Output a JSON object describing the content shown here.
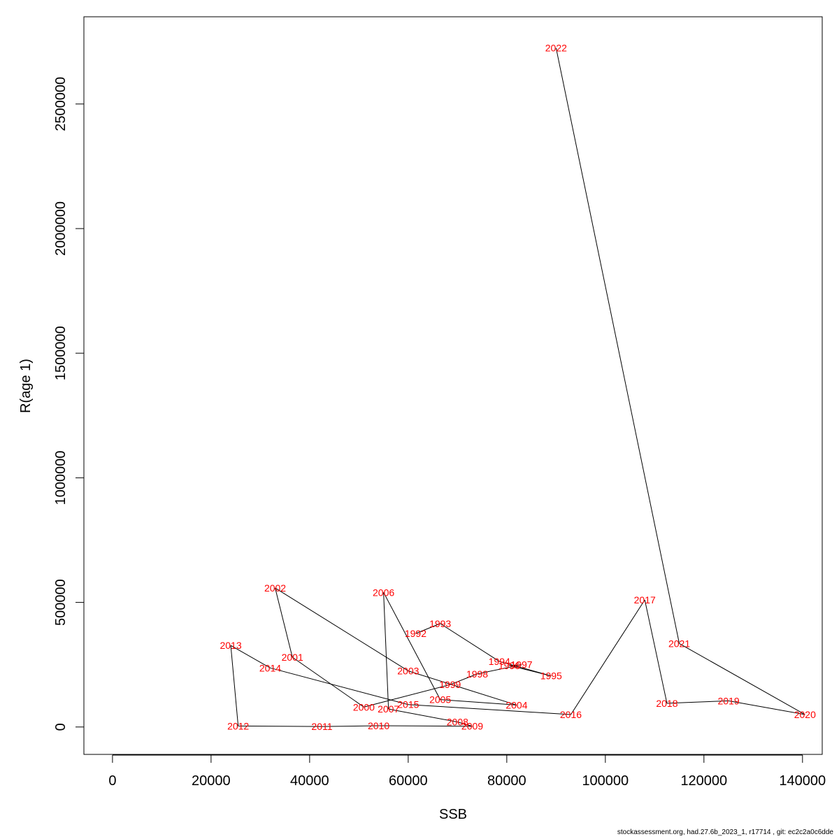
{
  "chart_data": {
    "type": "line",
    "xlabel": "SSB",
    "ylabel": "R(age 1)",
    "xlim": [
      -5800,
      144000
    ],
    "ylim": [
      -110000,
      2850000
    ],
    "x_ticks": [
      0,
      20000,
      40000,
      60000,
      80000,
      100000,
      120000,
      140000
    ],
    "y_ticks": [
      0,
      500000,
      1000000,
      1500000,
      2000000,
      2500000
    ],
    "grid": false,
    "label_color": "#ff0000",
    "line_color": "#000000",
    "points": [
      {
        "year": "1992",
        "x": 61500,
        "y": 375000
      },
      {
        "year": "1993",
        "x": 66500,
        "y": 415000
      },
      {
        "year": "1994",
        "x": 78500,
        "y": 263000
      },
      {
        "year": "1995",
        "x": 89000,
        "y": 205000
      },
      {
        "year": "1996",
        "x": 80500,
        "y": 247000
      },
      {
        "year": "1997",
        "x": 83000,
        "y": 250000
      },
      {
        "year": "1998",
        "x": 74000,
        "y": 213000
      },
      {
        "year": "1999",
        "x": 68500,
        "y": 170000
      },
      {
        "year": "2000",
        "x": 51000,
        "y": 80000
      },
      {
        "year": "2001",
        "x": 36500,
        "y": 280000
      },
      {
        "year": "2002",
        "x": 33000,
        "y": 558000
      },
      {
        "year": "2003",
        "x": 60000,
        "y": 225000
      },
      {
        "year": "2004",
        "x": 82000,
        "y": 88000
      },
      {
        "year": "2005",
        "x": 66500,
        "y": 110000
      },
      {
        "year": "2006",
        "x": 55000,
        "y": 540000
      },
      {
        "year": "2007",
        "x": 56000,
        "y": 72000
      },
      {
        "year": "2008",
        "x": 70000,
        "y": 20000
      },
      {
        "year": "2009",
        "x": 73000,
        "y": 3000
      },
      {
        "year": "2010",
        "x": 54000,
        "y": 5000
      },
      {
        "year": "2011",
        "x": 42500,
        "y": 2000
      },
      {
        "year": "2012",
        "x": 25500,
        "y": 4000
      },
      {
        "year": "2013",
        "x": 24000,
        "y": 327000
      },
      {
        "year": "2014",
        "x": 32000,
        "y": 237000
      },
      {
        "year": "2015",
        "x": 60000,
        "y": 90000
      },
      {
        "year": "2016",
        "x": 93000,
        "y": 50000
      },
      {
        "year": "2017",
        "x": 108000,
        "y": 510000
      },
      {
        "year": "2018",
        "x": 112500,
        "y": 95000
      },
      {
        "year": "2019",
        "x": 125000,
        "y": 105000
      },
      {
        "year": "2020",
        "x": 140500,
        "y": 50000
      },
      {
        "year": "2021",
        "x": 115000,
        "y": 335000
      },
      {
        "year": "2022",
        "x": 90000,
        "y": 2725000
      }
    ]
  },
  "footer": "stockassessment.org, had.27.6b_2023_1, r17714 , git: ec2c2a0c6dde"
}
